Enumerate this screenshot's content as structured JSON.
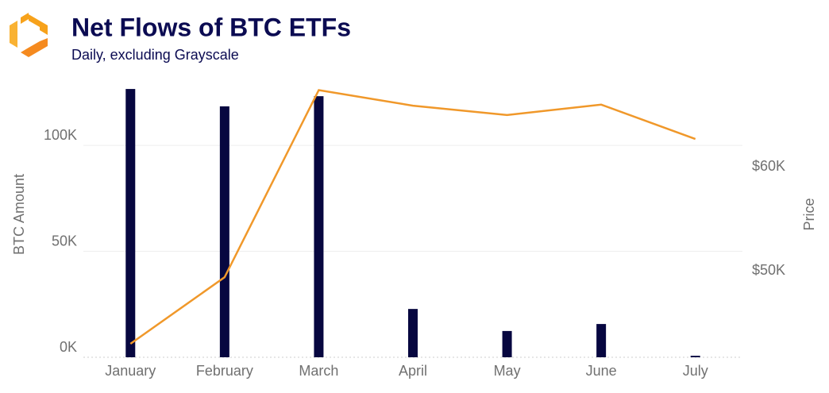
{
  "chart_data": {
    "type": "bar-line",
    "title": "Net Flows of BTC ETFs",
    "subtitle": "Daily, excluding Grayscale",
    "y_label": "BTC Amount",
    "y2_label": "Price",
    "categories": [
      "January",
      "February",
      "March",
      "April",
      "May",
      "June",
      "July"
    ],
    "series": [
      {
        "name": "BTC Amount",
        "type": "bar",
        "color": "#070740",
        "values": [
          126600,
          118400,
          123200,
          22800,
          12400,
          15700,
          700
        ]
      },
      {
        "name": "Price",
        "type": "line",
        "axis": "y2",
        "color": "#f0982a",
        "values": [
          43000,
          49400,
          67400,
          65900,
          65000,
          66000,
          62700
        ]
      }
    ],
    "ylim": [
      0,
      130000
    ],
    "yticks": [
      {
        "value": 0,
        "label": "0K"
      },
      {
        "value": 50000,
        "label": "50K"
      },
      {
        "value": 100000,
        "label": "100K"
      }
    ],
    "y2lim": [
      41700,
      68200
    ],
    "y2ticks": [
      {
        "value": 50000,
        "label": "$50K"
      },
      {
        "value": 60000,
        "label": "$60K"
      }
    ],
    "grid": true
  }
}
